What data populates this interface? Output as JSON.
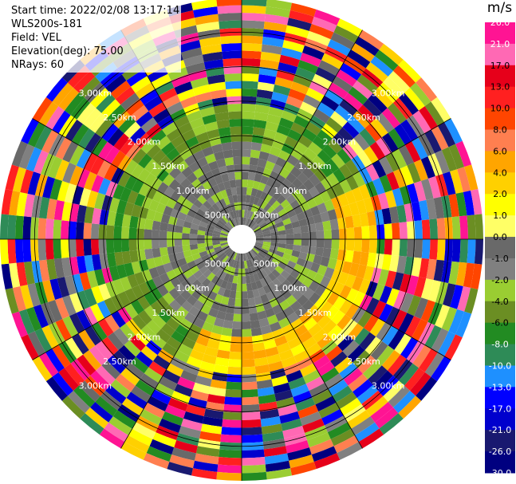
{
  "header": {
    "start_time": "Start time: 2022/02/08 13:17:14",
    "instrument": "WLS200s-181",
    "field": "Field: VEL",
    "elevation": "Elevation(deg): 75.00",
    "nrays": "NRays: 60"
  },
  "colorbar": {
    "unit": "m/s",
    "ticks": [
      "26.0",
      "21.0",
      "17.0",
      "13.0",
      "10.0",
      "8.0",
      "6.0",
      "4.0",
      "2.0",
      "1.0",
      "0.0",
      "-1.0",
      "-2.0",
      "-4.0",
      "-6.0",
      "-8.0",
      "-10.0",
      "-13.0",
      "-17.0",
      "-21.0",
      "-26.0",
      "-30.0"
    ],
    "colors": [
      "#ff1493",
      "#ff69b4",
      "#e6001a",
      "#ff2020",
      "#ff4500",
      "#ff7f50",
      "#ffa500",
      "#ffd000",
      "#ffff00",
      "#ffff66",
      "#696969",
      "#808080",
      "#9acd32",
      "#6b8e23",
      "#228b22",
      "#2e8b57",
      "#1e90ff",
      "#0000ff",
      "#0000cd",
      "#191970",
      "#000080"
    ]
  },
  "range_labels": [
    "500m",
    "1.00km",
    "1.50km",
    "2.00km",
    "2.50km",
    "3.00km"
  ],
  "ppi": {
    "range_rings_km": [
      0.5,
      1.0,
      1.5,
      2.0,
      2.5,
      3.0
    ],
    "max_range_km": 3.5,
    "n_rays": 60,
    "n_gates": 30
  }
}
